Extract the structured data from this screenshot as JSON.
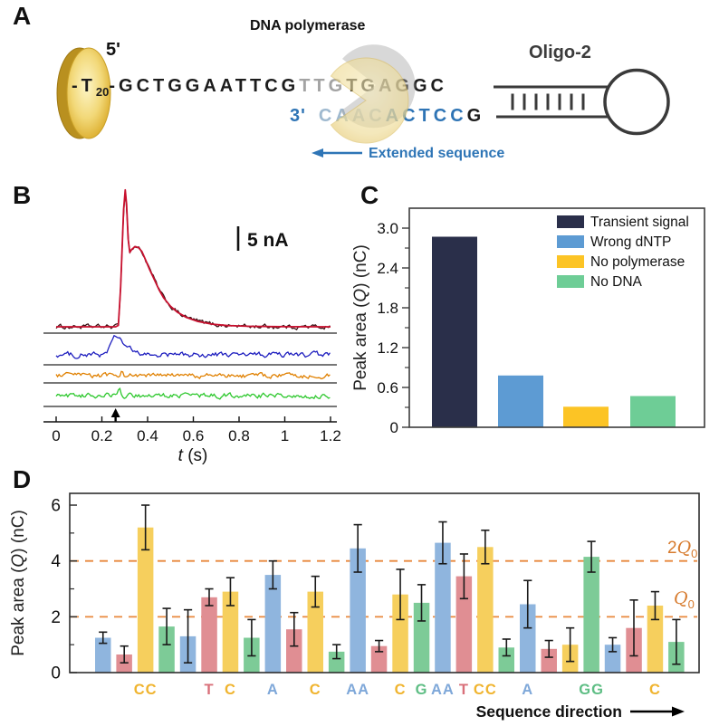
{
  "panels": {
    "A": {
      "label": "A",
      "polymerase_label": "DNA polymerase",
      "five_prime": "5'",
      "three_prime": "3'",
      "oligo_label": "Oligo-2",
      "sequence_top": {
        "tether": "-T",
        "t_subscript": "20",
        "linker": "-",
        "before_poly": "GCTGGAATTCG",
        "under_poly": "TTG",
        "after_poly": "TGAGGC"
      },
      "sequence_bottom": {
        "under_poly": "CAAC",
        "extension": "ACTCC",
        "terminal": "G"
      },
      "extended_arrow_label": "Extended sequence",
      "bead_color": "#e8c34a",
      "polymerase_color": "#eed890"
    },
    "B": {
      "label": "B"
    },
    "C": {
      "label": "C"
    },
    "D": {
      "label": "D"
    }
  },
  "chart_data": [
    {
      "panel": "B",
      "type": "line",
      "xlabel": "t (s)",
      "xlim": [
        0,
        1.2
      ],
      "x_ticks": [
        0,
        0.2,
        0.4,
        0.6,
        0.8,
        1,
        1.2
      ],
      "x_tick_labels": [
        "0",
        "0.2",
        "0.4",
        "0.6",
        "0.8",
        "1",
        "1.2"
      ],
      "scale_bar_label": "5 nA",
      "scale_bar_nA": 5,
      "stimulus_arrow_t": 0.26,
      "traces": [
        {
          "name": "transient signal",
          "trace_color": "#3c1014",
          "fit_color": "#c8102e",
          "noise_nA": 0.5,
          "fit_anchors_t_nA": [
            [
              0,
              0
            ],
            [
              0.26,
              0
            ],
            [
              0.272,
              0.3
            ],
            [
              0.282,
              8
            ],
            [
              0.295,
              24
            ],
            [
              0.302,
              28
            ],
            [
              0.308,
              25
            ],
            [
              0.315,
              18
            ],
            [
              0.322,
              15.2
            ],
            [
              0.33,
              15.8
            ],
            [
              0.345,
              16.4
            ],
            [
              0.36,
              16.2
            ],
            [
              0.375,
              15.4
            ],
            [
              0.39,
              13.8
            ],
            [
              0.41,
              11.6
            ],
            [
              0.43,
              9.6
            ],
            [
              0.45,
              7.6
            ],
            [
              0.47,
              5.9
            ],
            [
              0.5,
              4.2
            ],
            [
              0.53,
              3.0
            ],
            [
              0.57,
              1.9
            ],
            [
              0.62,
              1.1
            ],
            [
              0.68,
              0.55
            ],
            [
              0.75,
              0.25
            ],
            [
              0.85,
              0.1
            ],
            [
              1.0,
              0.02
            ],
            [
              1.2,
              0
            ]
          ]
        },
        {
          "name": "wrong dNTP",
          "trace_color": "#1f1fbf",
          "noise_nA": 0.6,
          "bumps": [
            {
              "t": 0.26,
              "amp_nA": 3.0,
              "sigma": 0.022
            },
            {
              "t": 0.3,
              "amp_nA": 1.5,
              "sigma": 0.03
            }
          ]
        },
        {
          "name": "no polymerase",
          "trace_color": "#e08000",
          "noise_nA": 0.55,
          "bumps": [
            {
              "t": 0.285,
              "amp_nA": 0.9,
              "sigma": 0.006
            }
          ]
        },
        {
          "name": "no DNA",
          "trace_color": "#2ec82e",
          "noise_nA": 0.55,
          "bumps": [
            {
              "t": 0.275,
              "amp_nA": 1.6,
              "sigma": 0.005
            }
          ]
        }
      ]
    },
    {
      "panel": "C",
      "type": "bar",
      "ylabel": "Peak area (Q) (nC)",
      "y_ticks": [
        0,
        0.6,
        1.2,
        1.8,
        2.4,
        3.0
      ],
      "y_tick_labels": [
        "0",
        "0.6",
        "1.2",
        "1.8",
        "2.4",
        "3.0"
      ],
      "ylim": [
        0,
        3.3
      ],
      "legend_position": "top-right",
      "series": [
        {
          "label": "Transient signal",
          "value": 2.87,
          "color": "#2a2f4a"
        },
        {
          "label": "Wrong dNTP",
          "value": 0.78,
          "color": "#5d9bd3"
        },
        {
          "label": "No polymerase",
          "value": 0.31,
          "color": "#fcc425"
        },
        {
          "label": "No DNA",
          "value": 0.47,
          "color": "#6ecd96"
        }
      ]
    },
    {
      "panel": "D",
      "type": "bar",
      "ylabel": "Peak area (Q) (nC)",
      "y_ticks": [
        0,
        2,
        4,
        6
      ],
      "y_minor_ticks": [
        1,
        3,
        5
      ],
      "ylim": [
        0,
        6.42
      ],
      "reference_lines": [
        {
          "value": 4,
          "label": "2Q0",
          "color": "#d77b2e"
        },
        {
          "value": 2,
          "label": "Q0",
          "color": "#d77b2e"
        }
      ],
      "x_axis_note": "Sequence direction",
      "base_colors": {
        "A": "#8fb5de",
        "T": "#e08e93",
        "C": "#f6cf5d",
        "G": "#7dcb97"
      },
      "label_colors": {
        "A": "#7fa8d9",
        "T": "#d9707a",
        "C": "#f0b42f",
        "G": "#5fbe85"
      },
      "bars": [
        {
          "base": "A",
          "value": 1.25,
          "err": 0.2,
          "call": ""
        },
        {
          "base": "T",
          "value": 0.65,
          "err": 0.3,
          "call": ""
        },
        {
          "base": "C",
          "value": 5.2,
          "err": 0.8,
          "call": "CC"
        },
        {
          "base": "G",
          "value": 1.65,
          "err": 0.65,
          "call": ""
        },
        {
          "base": "A",
          "value": 1.3,
          "err": 0.95,
          "call": ""
        },
        {
          "base": "T",
          "value": 2.7,
          "err": 0.3,
          "call": "T"
        },
        {
          "base": "C",
          "value": 2.9,
          "err": 0.5,
          "call": "C"
        },
        {
          "base": "G",
          "value": 1.25,
          "err": 0.65,
          "call": ""
        },
        {
          "base": "A",
          "value": 3.5,
          "err": 0.5,
          "call": "A"
        },
        {
          "base": "T",
          "value": 1.55,
          "err": 0.6,
          "call": ""
        },
        {
          "base": "C",
          "value": 2.9,
          "err": 0.55,
          "call": "C"
        },
        {
          "base": "G",
          "value": 0.75,
          "err": 0.25,
          "call": ""
        },
        {
          "base": "A",
          "value": 4.45,
          "err": 0.85,
          "call": "AA"
        },
        {
          "base": "T",
          "value": 0.95,
          "err": 0.2,
          "call": ""
        },
        {
          "base": "C",
          "value": 2.8,
          "err": 0.9,
          "call": "C"
        },
        {
          "base": "G",
          "value": 2.5,
          "err": 0.65,
          "call": "G"
        },
        {
          "base": "A",
          "value": 4.65,
          "err": 0.75,
          "call": "AA"
        },
        {
          "base": "T",
          "value": 3.45,
          "err": 0.8,
          "call": "T"
        },
        {
          "base": "C",
          "value": 4.5,
          "err": 0.6,
          "call": "CC"
        },
        {
          "base": "G",
          "value": 0.9,
          "err": 0.3,
          "call": ""
        },
        {
          "base": "A",
          "value": 2.45,
          "err": 0.85,
          "call": "A"
        },
        {
          "base": "T",
          "value": 0.85,
          "err": 0.3,
          "call": ""
        },
        {
          "base": "C",
          "value": 1.0,
          "err": 0.6,
          "call": ""
        },
        {
          "base": "G",
          "value": 4.15,
          "err": 0.55,
          "call": "GG"
        },
        {
          "base": "A",
          "value": 1.0,
          "err": 0.25,
          "call": ""
        },
        {
          "base": "T",
          "value": 1.6,
          "err": 1.0,
          "call": ""
        },
        {
          "base": "C",
          "value": 2.4,
          "err": 0.5,
          "call": "C"
        },
        {
          "base": "G",
          "value": 1.1,
          "err": 0.8,
          "call": ""
        }
      ]
    }
  ]
}
